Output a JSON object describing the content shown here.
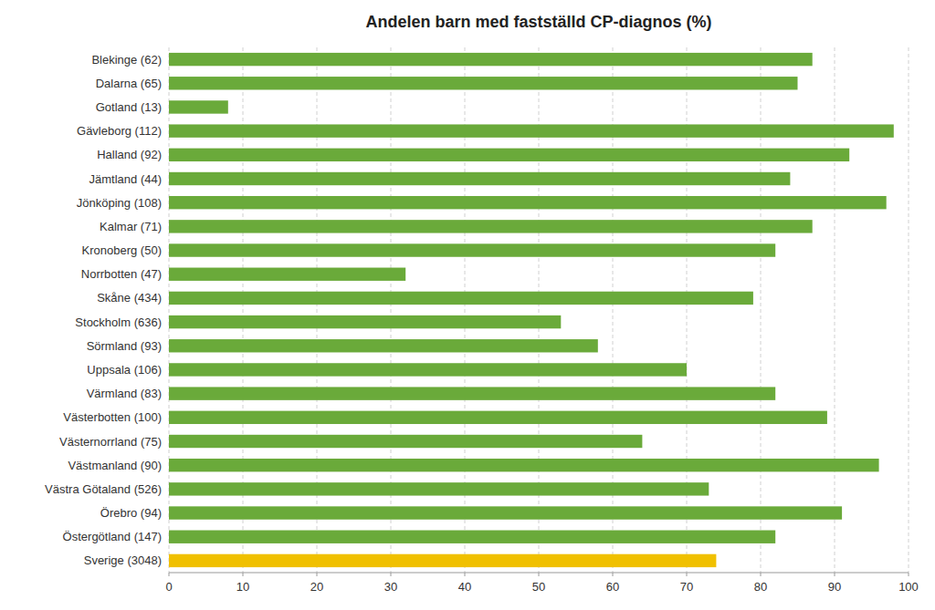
{
  "chart_data": {
    "type": "bar",
    "orientation": "horizontal",
    "title": "Andelen barn med fastställd CP-diagnos (%)",
    "categories": [
      "Sverige (3048)",
      "Östergötland (147)",
      "Örebro (94)",
      "Västra Götaland (526)",
      "Västmanland (90)",
      "Västernorrland (75)",
      "Västerbotten (100)",
      "Värmland (83)",
      "Uppsala (106)",
      "Sörmland (93)",
      "Stockholm (636)",
      "Skåne (434)",
      "Norrbotten (47)",
      "Kronoberg (50)",
      "Kalmar (71)",
      "Jönköping (108)",
      "Jämtland (44)",
      "Halland (92)",
      "Gävleborg (112)",
      "Gotland (13)",
      "Dalarna (65)",
      "Blekinge (62)"
    ],
    "values": [
      74,
      82,
      91,
      73,
      96,
      64,
      89,
      82,
      70,
      58,
      53,
      79,
      32,
      82,
      87,
      97,
      84,
      92,
      98,
      8,
      85,
      87
    ],
    "colors": [
      "#f0c000",
      "#6aaa3a",
      "#6aaa3a",
      "#6aaa3a",
      "#6aaa3a",
      "#6aaa3a",
      "#6aaa3a",
      "#6aaa3a",
      "#6aaa3a",
      "#6aaa3a",
      "#6aaa3a",
      "#6aaa3a",
      "#6aaa3a",
      "#6aaa3a",
      "#6aaa3a",
      "#6aaa3a",
      "#6aaa3a",
      "#6aaa3a",
      "#6aaa3a",
      "#6aaa3a",
      "#6aaa3a",
      "#6aaa3a"
    ],
    "xlim": [
      0,
      100
    ],
    "xticks": [
      0,
      10,
      20,
      30,
      40,
      50,
      60,
      70,
      80,
      90,
      100
    ],
    "grid": true
  }
}
